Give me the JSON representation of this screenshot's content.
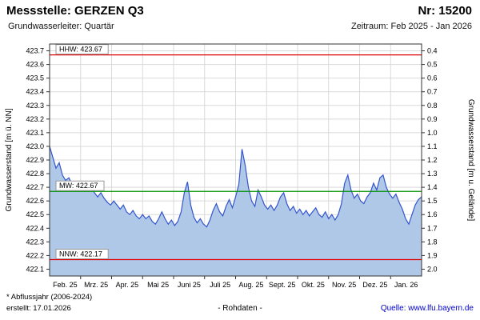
{
  "header": {
    "title": "Messstelle: GERZEN Q3",
    "number": "Nr: 15200",
    "aquifer": "Grundwasserleiter: Quartär",
    "period": "Zeitraum: Feb 2025 - Jan 2026"
  },
  "chart_data": {
    "type": "area",
    "title": "",
    "ylabel_left": "Grundwasserstand [m ü. NN]",
    "ylabel_right": "Grundwasserstand [m u. Gelände]",
    "ylim_left": [
      422.05,
      423.75
    ],
    "yticks_left": [
      423.7,
      423.6,
      423.5,
      423.4,
      423.3,
      423.2,
      423.1,
      423.0,
      422.9,
      422.8,
      422.7,
      422.6,
      422.5,
      422.4,
      422.3,
      422.2,
      422.1
    ],
    "yticks_right": [
      0.4,
      0.5,
      0.6,
      0.7,
      0.8,
      0.9,
      1.0,
      1.1,
      1.2,
      1.3,
      1.4,
      1.5,
      1.6,
      1.7,
      1.8,
      1.9,
      2.0
    ],
    "x_labels": [
      "Feb. 25",
      "Mrz. 25",
      "Apr. 25",
      "Mai 25",
      "Juni 25",
      "Juli 25",
      "Aug. 25",
      "Sept. 25",
      "Okt. 25",
      "Nov. 25",
      "Dez. 25",
      "Jan. 26"
    ],
    "grid": true,
    "legend_position": "none",
    "reference_lines": [
      {
        "name": "HHW",
        "label": "HHW: 423.67",
        "value": 423.67,
        "color": "#e00000"
      },
      {
        "name": "MW",
        "label": "MW: 422.67",
        "value": 422.67,
        "color": "#009000"
      },
      {
        "name": "NNW",
        "label": "NNW: 422.17",
        "value": 422.17,
        "color": "#e00000"
      }
    ],
    "series": [
      {
        "name": "Rohdaten",
        "values": [
          423.0,
          422.92,
          422.84,
          422.88,
          422.79,
          422.75,
          422.77,
          422.72,
          422.74,
          422.71,
          422.73,
          422.7,
          422.68,
          422.7,
          422.66,
          422.63,
          422.66,
          422.62,
          422.59,
          422.57,
          422.6,
          422.57,
          422.54,
          422.57,
          422.52,
          422.5,
          422.53,
          422.49,
          422.47,
          422.5,
          422.47,
          422.49,
          422.45,
          422.43,
          422.47,
          422.52,
          422.47,
          422.43,
          422.46,
          422.42,
          422.45,
          422.52,
          422.66,
          422.74,
          422.57,
          422.48,
          422.44,
          422.47,
          422.43,
          422.41,
          422.46,
          422.53,
          422.58,
          422.52,
          422.49,
          422.56,
          422.61,
          422.55,
          422.63,
          422.72,
          422.98,
          422.86,
          422.7,
          422.6,
          422.56,
          422.68,
          422.63,
          422.57,
          422.54,
          422.57,
          422.53,
          422.57,
          422.63,
          422.66,
          422.58,
          422.53,
          422.56,
          422.51,
          422.54,
          422.5,
          422.53,
          422.49,
          422.52,
          422.55,
          422.5,
          422.48,
          422.52,
          422.47,
          422.5,
          422.46,
          422.5,
          422.58,
          422.73,
          422.79,
          422.68,
          422.62,
          422.65,
          422.6,
          422.58,
          422.63,
          422.66,
          422.73,
          422.68,
          422.77,
          422.79,
          422.7,
          422.65,
          422.62,
          422.65,
          422.59,
          422.54,
          422.47,
          422.43,
          422.5,
          422.57,
          422.61,
          422.63
        ]
      }
    ],
    "colors": {
      "line": "#3355cc",
      "fill": "#b0c8e8",
      "grid": "#d9d9d9",
      "frame": "#333333"
    }
  },
  "footer": {
    "note": "* Abflussjahr (2006-2024)",
    "created": "erstellt: 17.01.2026",
    "center": "- Rohdaten -",
    "source_prefix": "Quelle:",
    "source_link": "www.lfu.bayern.de"
  }
}
